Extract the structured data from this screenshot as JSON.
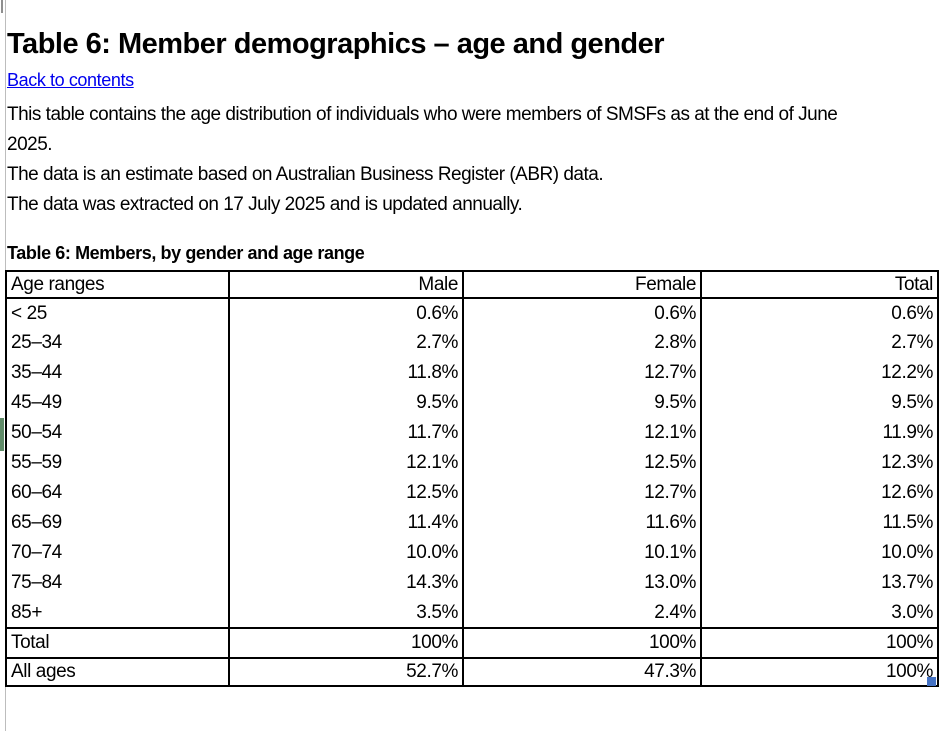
{
  "page": {
    "title": "Table 6: Member demographics – age and gender",
    "back_link_label": "Back to contents",
    "description_lines": {
      "l1": "This table contains the age distribution of individuals who were members of SMSFs as at the end of June",
      "l2": "2025.",
      "l3": "The data is an estimate based on Australian Business Register (ABR) data.",
      "l4": "The data was extracted on 17 July 2025 and is updated annually."
    },
    "table_caption": "Table 6: Members, by gender and age range"
  },
  "colors": {
    "link_blue": "#0000EE",
    "table_border": "#000000",
    "fill_handle_blue": "#4472C4",
    "pane_divider_gray": "#bdbdbd",
    "selection_indicator_green": "#5f8b68"
  },
  "table": {
    "headers": [
      "Age ranges",
      "Male",
      "Female",
      "Total"
    ],
    "rows": [
      {
        "age": "< 25",
        "male": "0.6%",
        "female": "0.6%",
        "total": "0.6%"
      },
      {
        "age": "25–34",
        "male": "2.7%",
        "female": "2.8%",
        "total": "2.7%"
      },
      {
        "age": "35–44",
        "male": "11.8%",
        "female": "12.7%",
        "total": "12.2%"
      },
      {
        "age": "45–49",
        "male": "9.5%",
        "female": "9.5%",
        "total": "9.5%"
      },
      {
        "age": "50–54",
        "male": "11.7%",
        "female": "12.1%",
        "total": "11.9%"
      },
      {
        "age": "55–59",
        "male": "12.1%",
        "female": "12.5%",
        "total": "12.3%"
      },
      {
        "age": "60–64",
        "male": "12.5%",
        "female": "12.7%",
        "total": "12.6%"
      },
      {
        "age": "65–69",
        "male": "11.4%",
        "female": "11.6%",
        "total": "11.5%"
      },
      {
        "age": "70–74",
        "male": "10.0%",
        "female": "10.1%",
        "total": "10.0%"
      },
      {
        "age": "75–84",
        "male": "14.3%",
        "female": "13.0%",
        "total": "13.7%"
      },
      {
        "age": "85+",
        "male": "3.5%",
        "female": "2.4%",
        "total": "3.0%"
      },
      {
        "age": "Total",
        "male": "100%",
        "female": "100%",
        "total": "100%"
      },
      {
        "age": "All ages",
        "male": "52.7%",
        "female": "47.3%",
        "total": "100%"
      }
    ]
  },
  "chart_data": {
    "type": "table",
    "title": "Table 6: Members, by gender and age range",
    "categories": [
      "< 25",
      "25–34",
      "35–44",
      "45–49",
      "50–54",
      "55–59",
      "60–64",
      "65–69",
      "70–74",
      "75–84",
      "85+"
    ],
    "series": [
      {
        "name": "Male",
        "values": [
          0.6,
          2.7,
          11.8,
          9.5,
          11.7,
          12.1,
          12.5,
          11.4,
          10.0,
          14.3,
          3.5
        ],
        "total": 100,
        "all_ages_share": 52.7
      },
      {
        "name": "Female",
        "values": [
          0.6,
          2.8,
          12.7,
          9.5,
          12.1,
          12.5,
          12.7,
          11.6,
          10.1,
          13.0,
          2.4
        ],
        "total": 100,
        "all_ages_share": 47.3
      },
      {
        "name": "Total",
        "values": [
          0.6,
          2.7,
          12.2,
          9.5,
          11.9,
          12.3,
          12.6,
          11.5,
          10.0,
          13.7,
          3.0
        ],
        "total": 100,
        "all_ages_share": 100
      }
    ],
    "unit": "%"
  }
}
